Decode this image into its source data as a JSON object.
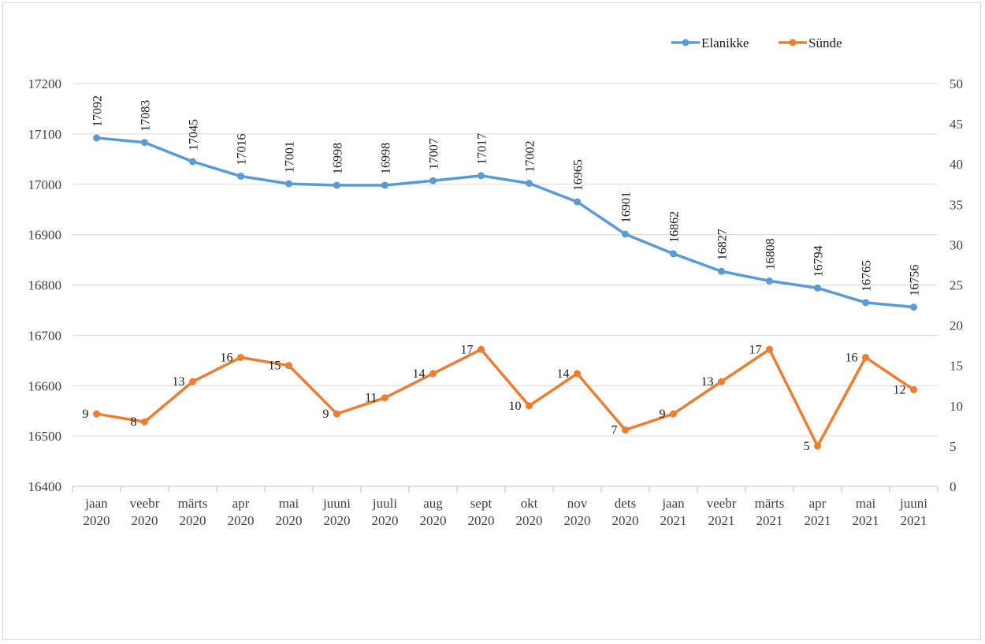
{
  "chart_data": {
    "type": "line",
    "categories": [
      [
        "jaan",
        "2020"
      ],
      [
        "veebr",
        "2020"
      ],
      [
        "märts",
        "2020"
      ],
      [
        "apr",
        "2020"
      ],
      [
        "mai",
        "2020"
      ],
      [
        "juuni",
        "2020"
      ],
      [
        "juuli",
        "2020"
      ],
      [
        "aug",
        "2020"
      ],
      [
        "sept",
        "2020"
      ],
      [
        "okt",
        "2020"
      ],
      [
        "nov",
        "2020"
      ],
      [
        "dets",
        "2020"
      ],
      [
        "jaan",
        "2021"
      ],
      [
        "veebr",
        "2021"
      ],
      [
        "märts",
        "2021"
      ],
      [
        "apr",
        "2021"
      ],
      [
        "mai",
        "2021"
      ],
      [
        "juuni",
        "2021"
      ]
    ],
    "left_axis": {
      "min": 16400,
      "max": 17200,
      "step": 100
    },
    "right_axis": {
      "min": 0,
      "max": 50,
      "step": 5
    },
    "grid": true,
    "legend_position": "top-right",
    "series": [
      {
        "name": "Elanikke",
        "axis": "left",
        "color": "#5b9bd5",
        "values": [
          17092,
          17083,
          17045,
          17016,
          17001,
          16998,
          16998,
          17007,
          17017,
          17002,
          16965,
          16901,
          16862,
          16827,
          16808,
          16794,
          16765,
          16756
        ]
      },
      {
        "name": "Sünde",
        "axis": "right",
        "color": "#ed7d31",
        "values": [
          9,
          8,
          13,
          16,
          15,
          9,
          11,
          14,
          17,
          10,
          14,
          7,
          9,
          13,
          17,
          5,
          16,
          12
        ]
      }
    ]
  }
}
